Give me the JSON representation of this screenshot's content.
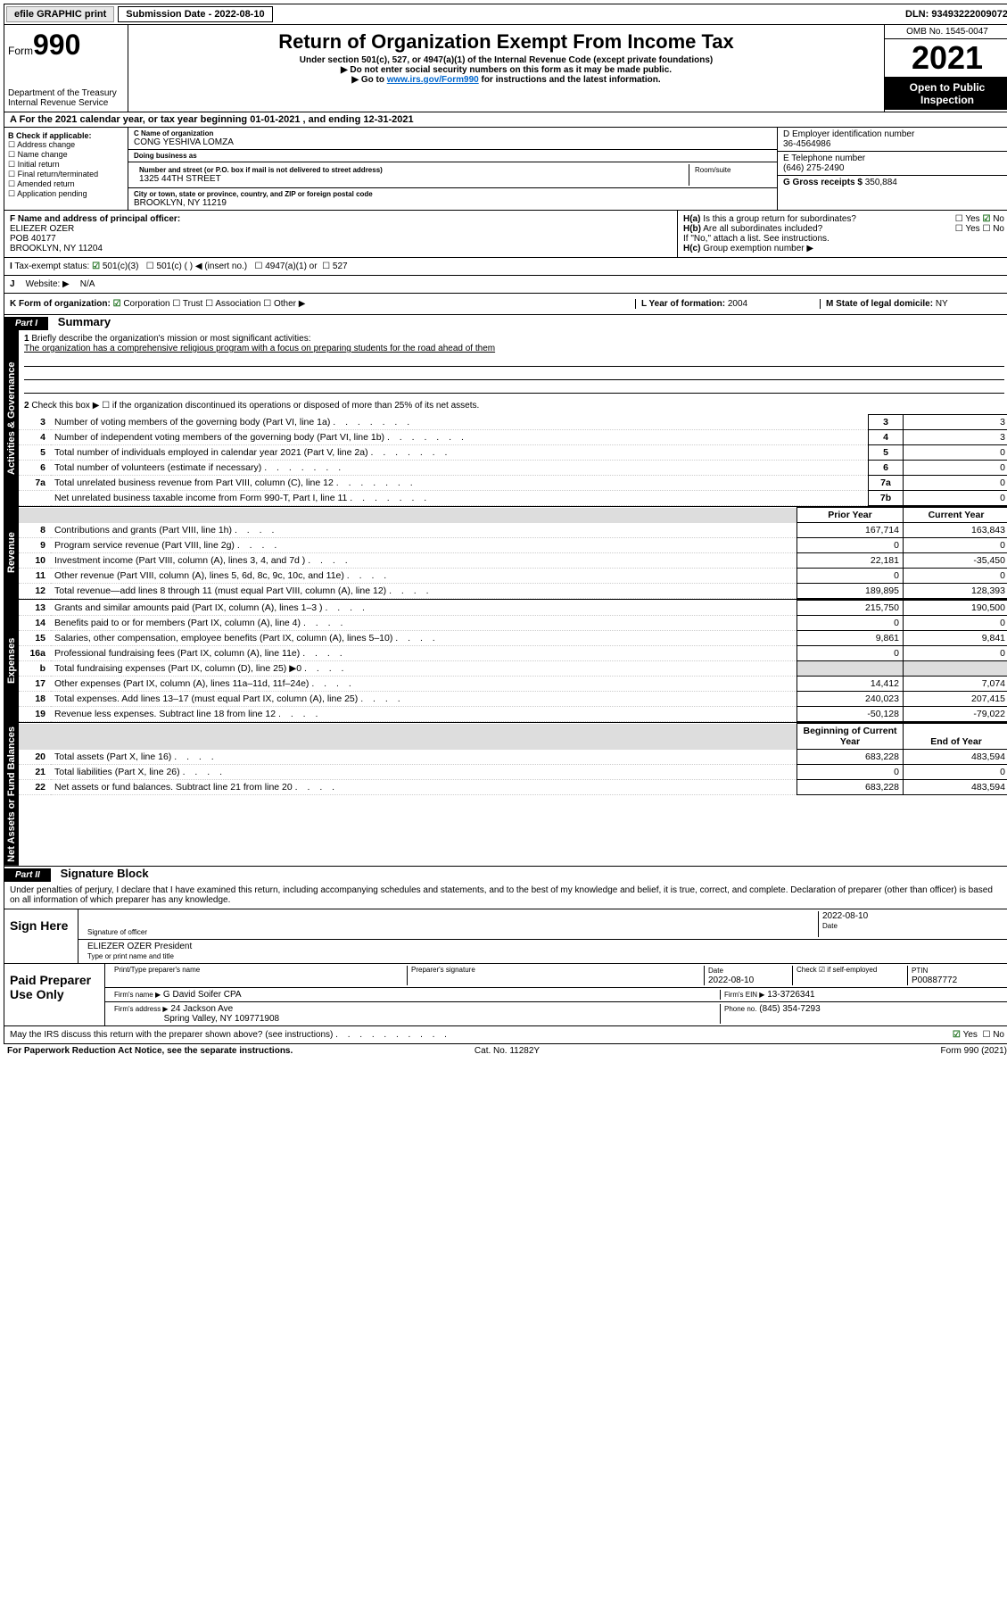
{
  "topbar": {
    "efile": "efile GRAPHIC print",
    "sub_label": "Submission Date - 2022-08-10",
    "dln": "DLN: 93493222009072"
  },
  "header": {
    "form_label": "Form",
    "form_num": "990",
    "dept": "Department of the Treasury",
    "irs": "Internal Revenue Service",
    "title": "Return of Organization Exempt From Income Tax",
    "sub1": "Under section 501(c), 527, or 4947(a)(1) of the Internal Revenue Code (except private foundations)",
    "sub2": "▶ Do not enter social security numbers on this form as it may be made public.",
    "sub3_pre": "▶ Go to ",
    "sub3_link": "www.irs.gov/Form990",
    "sub3_post": " for instructions and the latest information.",
    "omb": "OMB No. 1545-0047",
    "year": "2021",
    "open": "Open to Public Inspection"
  },
  "A": "For the 2021 calendar year, or tax year beginning 01-01-2021   , and ending 12-31-2021",
  "B": {
    "label": "B Check if applicable:",
    "opts": [
      "Address change",
      "Name change",
      "Initial return",
      "Final return/terminated",
      "Amended return",
      "Application pending"
    ]
  },
  "C": {
    "name_label": "C Name of organization",
    "name": "CONG YESHIVA LOMZA",
    "dba_label": "Doing business as",
    "dba": "",
    "street_label": "Number and street (or P.O. box if mail is not delivered to street address)",
    "room_label": "Room/suite",
    "street": "1325 44TH STREET",
    "city_label": "City or town, state or province, country, and ZIP or foreign postal code",
    "city": "BROOKLYN, NY  11219"
  },
  "D": {
    "label": "D Employer identification number",
    "value": "36-4564986"
  },
  "E": {
    "label": "E Telephone number",
    "value": "(646) 275-2490"
  },
  "G": {
    "label": "G Gross receipts $",
    "value": "350,884"
  },
  "F": {
    "label": "F  Name and address of principal officer:",
    "name": "ELIEZER OZER",
    "addr1": "POB 40177",
    "addr2": "BROOKLYN, NY  11204"
  },
  "H": {
    "a": "Is this a group return for subordinates?",
    "b": "Are all subordinates included?",
    "note": "If \"No,\" attach a list. See instructions.",
    "c": "Group exemption number ▶"
  },
  "I": {
    "label": "Tax-exempt status:",
    "opts": [
      "501(c)(3)",
      "501(c) (   ) ◀ (insert no.)",
      "4947(a)(1) or",
      "527"
    ]
  },
  "J": {
    "label": "Website: ▶",
    "value": "N/A"
  },
  "K": {
    "label": "K Form of organization:",
    "opts": [
      "Corporation",
      "Trust",
      "Association",
      "Other ▶"
    ]
  },
  "L": {
    "label": "L Year of formation:",
    "value": "2004"
  },
  "M": {
    "label": "M State of legal domicile:",
    "value": "NY"
  },
  "partI": {
    "hdr": "Part I",
    "title": "Summary"
  },
  "summary": {
    "q1": "Briefly describe the organization's mission or most significant activities:",
    "mission": "The organization has a comprehensive religious program with a focus on preparing students for the road ahead of them",
    "q2": "Check this box ▶ ☐  if the organization discontinued its operations or disposed of more than 25% of its net assets.",
    "rows_gov": [
      {
        "n": "3",
        "t": "Number of voting members of the governing body (Part VI, line 1a)",
        "box": "3",
        "v": "3"
      },
      {
        "n": "4",
        "t": "Number of independent voting members of the governing body (Part VI, line 1b)",
        "box": "4",
        "v": "3"
      },
      {
        "n": "5",
        "t": "Total number of individuals employed in calendar year 2021 (Part V, line 2a)",
        "box": "5",
        "v": "0"
      },
      {
        "n": "6",
        "t": "Total number of volunteers (estimate if necessary)",
        "box": "6",
        "v": "0"
      },
      {
        "n": "7a",
        "t": "Total unrelated business revenue from Part VIII, column (C), line 12",
        "box": "7a",
        "v": "0"
      },
      {
        "n": "",
        "t": "Net unrelated business taxable income from Form 990-T, Part I, line 11",
        "box": "7b",
        "v": "0"
      }
    ],
    "col_py": "Prior Year",
    "col_cy": "Current Year",
    "rows_rev": [
      {
        "n": "8",
        "t": "Contributions and grants (Part VIII, line 1h)",
        "py": "167,714",
        "cy": "163,843"
      },
      {
        "n": "9",
        "t": "Program service revenue (Part VIII, line 2g)",
        "py": "0",
        "cy": "0"
      },
      {
        "n": "10",
        "t": "Investment income (Part VIII, column (A), lines 3, 4, and 7d )",
        "py": "22,181",
        "cy": "-35,450"
      },
      {
        "n": "11",
        "t": "Other revenue (Part VIII, column (A), lines 5, 6d, 8c, 9c, 10c, and 11e)",
        "py": "0",
        "cy": "0"
      },
      {
        "n": "12",
        "t": "Total revenue—add lines 8 through 11 (must equal Part VIII, column (A), line 12)",
        "py": "189,895",
        "cy": "128,393"
      }
    ],
    "rows_exp": [
      {
        "n": "13",
        "t": "Grants and similar amounts paid (Part IX, column (A), lines 1–3 )",
        "py": "215,750",
        "cy": "190,500"
      },
      {
        "n": "14",
        "t": "Benefits paid to or for members (Part IX, column (A), line 4)",
        "py": "0",
        "cy": "0"
      },
      {
        "n": "15",
        "t": "Salaries, other compensation, employee benefits (Part IX, column (A), lines 5–10)",
        "py": "9,861",
        "cy": "9,841"
      },
      {
        "n": "16a",
        "t": "Professional fundraising fees (Part IX, column (A), line 11e)",
        "py": "0",
        "cy": "0"
      },
      {
        "n": "b",
        "t": "Total fundraising expenses (Part IX, column (D), line 25) ▶0",
        "py": "",
        "cy": "",
        "shade": true
      },
      {
        "n": "17",
        "t": "Other expenses (Part IX, column (A), lines 11a–11d, 11f–24e)",
        "py": "14,412",
        "cy": "7,074"
      },
      {
        "n": "18",
        "t": "Total expenses. Add lines 13–17 (must equal Part IX, column (A), line 25)",
        "py": "240,023",
        "cy": "207,415"
      },
      {
        "n": "19",
        "t": "Revenue less expenses. Subtract line 18 from line 12",
        "py": "-50,128",
        "cy": "-79,022"
      }
    ],
    "col_boy": "Beginning of Current Year",
    "col_eoy": "End of Year",
    "rows_net": [
      {
        "n": "20",
        "t": "Total assets (Part X, line 16)",
        "py": "683,228",
        "cy": "483,594"
      },
      {
        "n": "21",
        "t": "Total liabilities (Part X, line 26)",
        "py": "0",
        "cy": "0"
      },
      {
        "n": "22",
        "t": "Net assets or fund balances. Subtract line 21 from line 20",
        "py": "683,228",
        "cy": "483,594"
      }
    ],
    "side_gov": "Activities & Governance",
    "side_rev": "Revenue",
    "side_exp": "Expenses",
    "side_net": "Net Assets or Fund Balances"
  },
  "partII": {
    "hdr": "Part II",
    "title": "Signature Block"
  },
  "sig": {
    "decl": "Under penalties of perjury, I declare that I have examined this return, including accompanying schedules and statements, and to the best of my knowledge and belief, it is true, correct, and complete. Declaration of preparer (other than officer) is based on all information of which preparer has any knowledge.",
    "sign_here": "Sign Here",
    "sig_officer": "Signature of officer",
    "date": "Date",
    "date_val": "2022-08-10",
    "name_title": "ELIEZER OZER  President",
    "type_name": "Type or print name and title",
    "paid": "Paid Preparer Use Only",
    "prep_name_l": "Print/Type preparer's name",
    "prep_sig_l": "Preparer's signature",
    "prep_date_l": "Date",
    "prep_date": "2022-08-10",
    "check_l": "Check ☑ if self-employed",
    "ptin_l": "PTIN",
    "ptin": "P00887772",
    "firm_name_l": "Firm's name   ▶",
    "firm_name": "G David Soifer CPA",
    "firm_ein_l": "Firm's EIN ▶",
    "firm_ein": "13-3726341",
    "firm_addr_l": "Firm's address ▶",
    "firm_addr1": "24 Jackson Ave",
    "firm_addr2": "Spring Valley, NY  109771908",
    "firm_phone_l": "Phone no.",
    "firm_phone": "(845) 354-7293",
    "discuss": "May the IRS discuss this return with the preparer shown above? (see instructions)"
  },
  "footer": {
    "pra": "For Paperwork Reduction Act Notice, see the separate instructions.",
    "cat": "Cat. No. 11282Y",
    "form": "Form 990 (2021)"
  },
  "yn": {
    "yes": "Yes",
    "no": "No"
  }
}
